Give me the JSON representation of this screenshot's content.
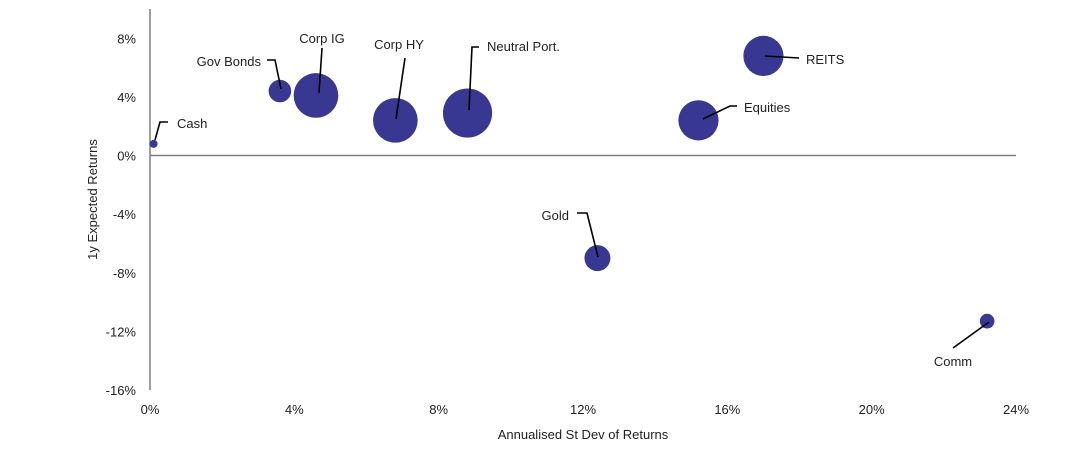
{
  "chart_data": {
    "type": "bubble",
    "title": "",
    "xlabel": "Annualised St Dev of Returns",
    "ylabel": "1y Expected Returns",
    "xlim": [
      0,
      24
    ],
    "ylim": [
      -16,
      10
    ],
    "x_ticks": [
      0,
      4,
      8,
      12,
      16,
      20,
      24
    ],
    "x_tick_labels": [
      "0%",
      "4%",
      "8%",
      "12%",
      "16%",
      "20%",
      "24%"
    ],
    "y_ticks": [
      8,
      4,
      0,
      -4,
      -8,
      -12,
      -16
    ],
    "y_tick_labels": [
      "8%",
      "4%",
      "0%",
      "-4%",
      "-8%",
      "-12%",
      "-16%"
    ],
    "grid": false,
    "bubble_color": "#383892",
    "points": [
      {
        "label": "Cash",
        "x": 0.1,
        "y": 0.8,
        "size": 0.2
      },
      {
        "label": "Gov Bonds",
        "x": 3.6,
        "y": 4.4,
        "size": 1.9
      },
      {
        "label": "Corp IG",
        "x": 4.6,
        "y": 4.1,
        "size": 7.4
      },
      {
        "label": "Corp HY",
        "x": 6.8,
        "y": 2.4,
        "size": 7.4
      },
      {
        "label": "Neutral Port.",
        "x": 8.8,
        "y": 2.9,
        "size": 9.0
      },
      {
        "label": "REITS",
        "x": 17.0,
        "y": 6.8,
        "size": 6.0
      },
      {
        "label": "Equities",
        "x": 15.2,
        "y": 2.4,
        "size": 6.0
      },
      {
        "label": "Gold",
        "x": 12.4,
        "y": -7.0,
        "size": 2.5
      },
      {
        "label": "Comm",
        "x": 23.2,
        "y": -11.3,
        "size": 0.8
      }
    ]
  }
}
